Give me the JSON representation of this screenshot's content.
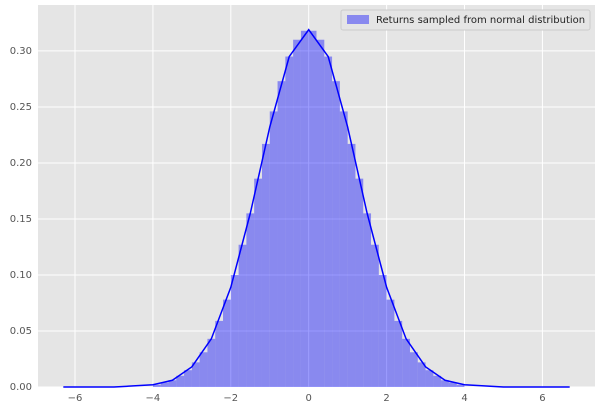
{
  "chart_data": {
    "type": "histogram",
    "label": "Returns sampled from normal distribution",
    "color": "#0000ff",
    "bin_alpha": 0.4,
    "bins": [
      -4.0,
      -3.8,
      -3.6,
      -3.4,
      -3.2,
      -3.0,
      -2.8,
      -2.6,
      -2.4,
      -2.2,
      -2.0,
      -1.8,
      -1.6,
      -1.4,
      -1.2,
      -1.0,
      -0.8,
      -0.6,
      -0.4,
      -0.2,
      0.0,
      0.2,
      0.4,
      0.6,
      0.8,
      1.0,
      1.2,
      1.4,
      1.6,
      1.8,
      2.0,
      2.2,
      2.4,
      2.6,
      2.8,
      3.0,
      3.2,
      3.4,
      3.6,
      3.8,
      4.0
    ],
    "values": [
      0.002,
      0.004,
      0.006,
      0.01,
      0.015,
      0.022,
      0.031,
      0.043,
      0.059,
      0.078,
      0.1,
      0.127,
      0.155,
      0.186,
      0.217,
      0.246,
      0.273,
      0.295,
      0.31,
      0.318,
      0.318,
      0.31,
      0.295,
      0.273,
      0.246,
      0.217,
      0.186,
      0.155,
      0.127,
      0.1,
      0.078,
      0.059,
      0.043,
      0.031,
      0.022,
      0.015,
      0.01,
      0.006,
      0.004,
      0.002
    ],
    "kde": {
      "x": [
        -6.3,
        -5.5,
        -5.0,
        -4.5,
        -4.0,
        -3.5,
        -3.0,
        -2.5,
        -2.0,
        -1.5,
        -1.0,
        -0.5,
        0.0,
        0.5,
        1.0,
        1.5,
        2.0,
        2.5,
        3.0,
        3.5,
        4.0,
        4.5,
        5.0,
        5.5,
        6.0,
        6.7
      ],
      "y": [
        0,
        0,
        0,
        0.001,
        0.002,
        0.006,
        0.018,
        0.043,
        0.089,
        0.155,
        0.232,
        0.295,
        0.319,
        0.295,
        0.232,
        0.155,
        0.089,
        0.043,
        0.018,
        0.006,
        0.002,
        0.001,
        0,
        0,
        0,
        0
      ],
      "color": "#0000ff"
    },
    "xlim": [
      -6.95,
      7.35
    ],
    "ylim": [
      0,
      0.341
    ],
    "xticks": [
      {
        "value": -6,
        "label": "−6"
      },
      {
        "value": -4,
        "label": "−4"
      },
      {
        "value": -2,
        "label": "−2"
      },
      0,
      2,
      4,
      6
    ],
    "yticks": [
      {
        "value": 0,
        "label": "0.00"
      },
      {
        "value": 0.05,
        "label": "0.05"
      },
      {
        "value": 0.1,
        "label": "0.10"
      },
      {
        "value": 0.15,
        "label": "0.15"
      },
      {
        "value": 0.2,
        "label": "0.20"
      },
      {
        "value": 0.25,
        "label": "0.25"
      },
      {
        "value": 0.3,
        "label": "0.30"
      }
    ],
    "grid": true,
    "legend": "upper right"
  }
}
